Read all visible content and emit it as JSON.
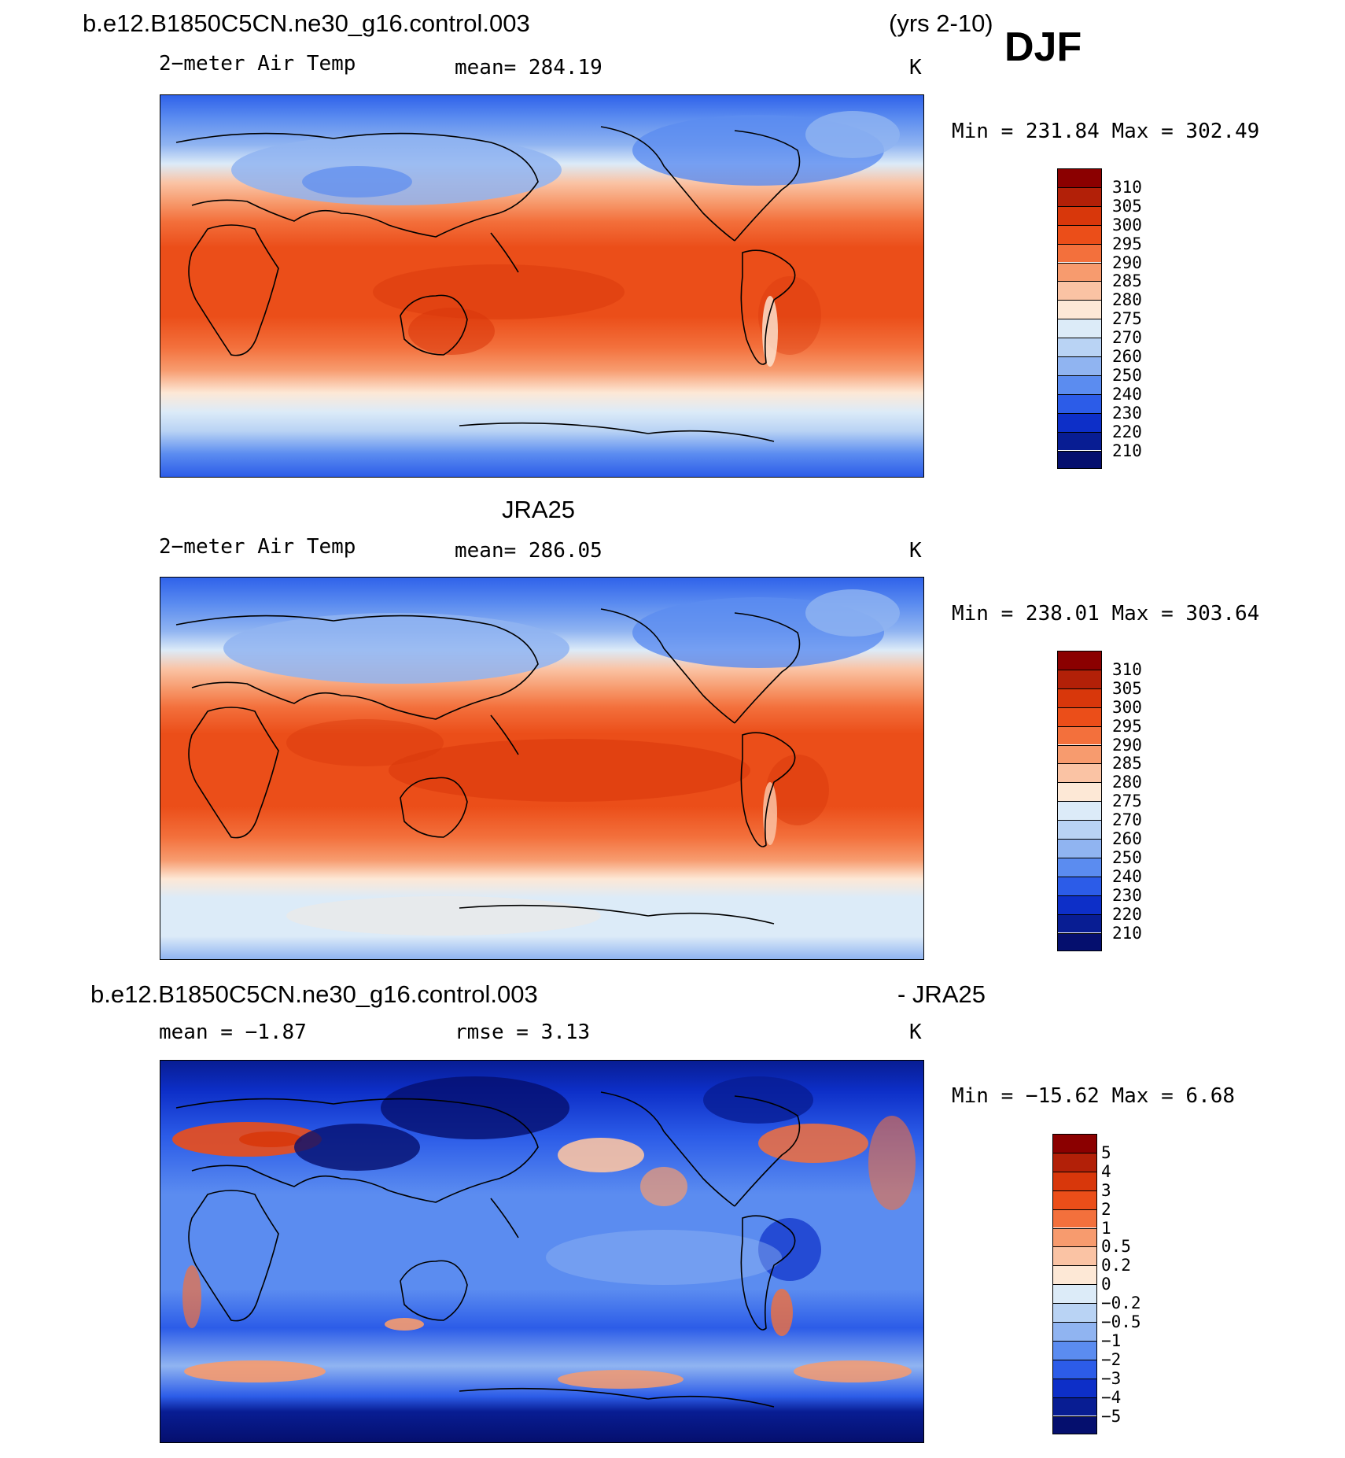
{
  "header": {
    "case_name": "b.e12.B1850C5CN.ne30_g16.control.003",
    "years": "(yrs 2-10)",
    "season": "DJF"
  },
  "panels": [
    {
      "variable": "2−meter Air Temp",
      "stat": "mean=  284.19",
      "units": "K",
      "minmax": "Min  =  231.84  Max  =  302.49",
      "colorbar_labels": [
        "310",
        "305",
        "300",
        "295",
        "290",
        "285",
        "280",
        "275",
        "270",
        "260",
        "250",
        "240",
        "230",
        "220",
        "210"
      ],
      "colorbar_colors": [
        "#8b0000",
        "#b22008",
        "#d8370b",
        "#eb4e19",
        "#f3703c",
        "#f79b6e",
        "#fac3a4",
        "#fde8d6",
        "#dcebf8",
        "#b9d3f4",
        "#90b4f1",
        "#5b8cf0",
        "#2c5ce8",
        "#0d2fc8",
        "#081d93",
        "#050f6e"
      ],
      "field_levels": [
        {
          "color": "#1e46dc",
          "note": "cold poles"
        }
      ]
    },
    {
      "title": "JRA25",
      "variable": "2−meter Air Temp",
      "stat": "mean=  286.05",
      "units": "K",
      "minmax": "Min  =  238.01  Max  =  303.64",
      "colorbar_labels": [
        "310",
        "305",
        "300",
        "295",
        "290",
        "285",
        "280",
        "275",
        "270",
        "260",
        "250",
        "240",
        "230",
        "220",
        "210"
      ],
      "colorbar_colors": [
        "#8b0000",
        "#b22008",
        "#d8370b",
        "#eb4e19",
        "#f3703c",
        "#f79b6e",
        "#fac3a4",
        "#fde8d6",
        "#dcebf8",
        "#b9d3f4",
        "#90b4f1",
        "#5b8cf0",
        "#2c5ce8",
        "#0d2fc8",
        "#081d93",
        "#050f6e"
      ]
    },
    {
      "title_left": "b.e12.B1850C5CN.ne30_g16.control.003",
      "title_right": "- JRA25",
      "stat_mean": "mean  =   −1.87",
      "stat_rmse": "rmse  =     3.13",
      "units": "K",
      "minmax": "Min  =  −15.62  Max  =     6.68",
      "colorbar_labels": [
        "5",
        "4",
        "3",
        "2",
        "1",
        "0.5",
        "0.2",
        "0",
        "−0.2",
        "−0.5",
        "−1",
        "−2",
        "−3",
        "−4",
        "−5"
      ],
      "colorbar_colors": [
        "#8b0000",
        "#b22008",
        "#d8370b",
        "#eb4e19",
        "#f3703c",
        "#f79b6e",
        "#fac3a4",
        "#fde8d6",
        "#dcebf8",
        "#b9d3f4",
        "#90b4f1",
        "#5b8cf0",
        "#2c5ce8",
        "#0d2fc8",
        "#081d93",
        "#050f6e"
      ]
    }
  ]
}
